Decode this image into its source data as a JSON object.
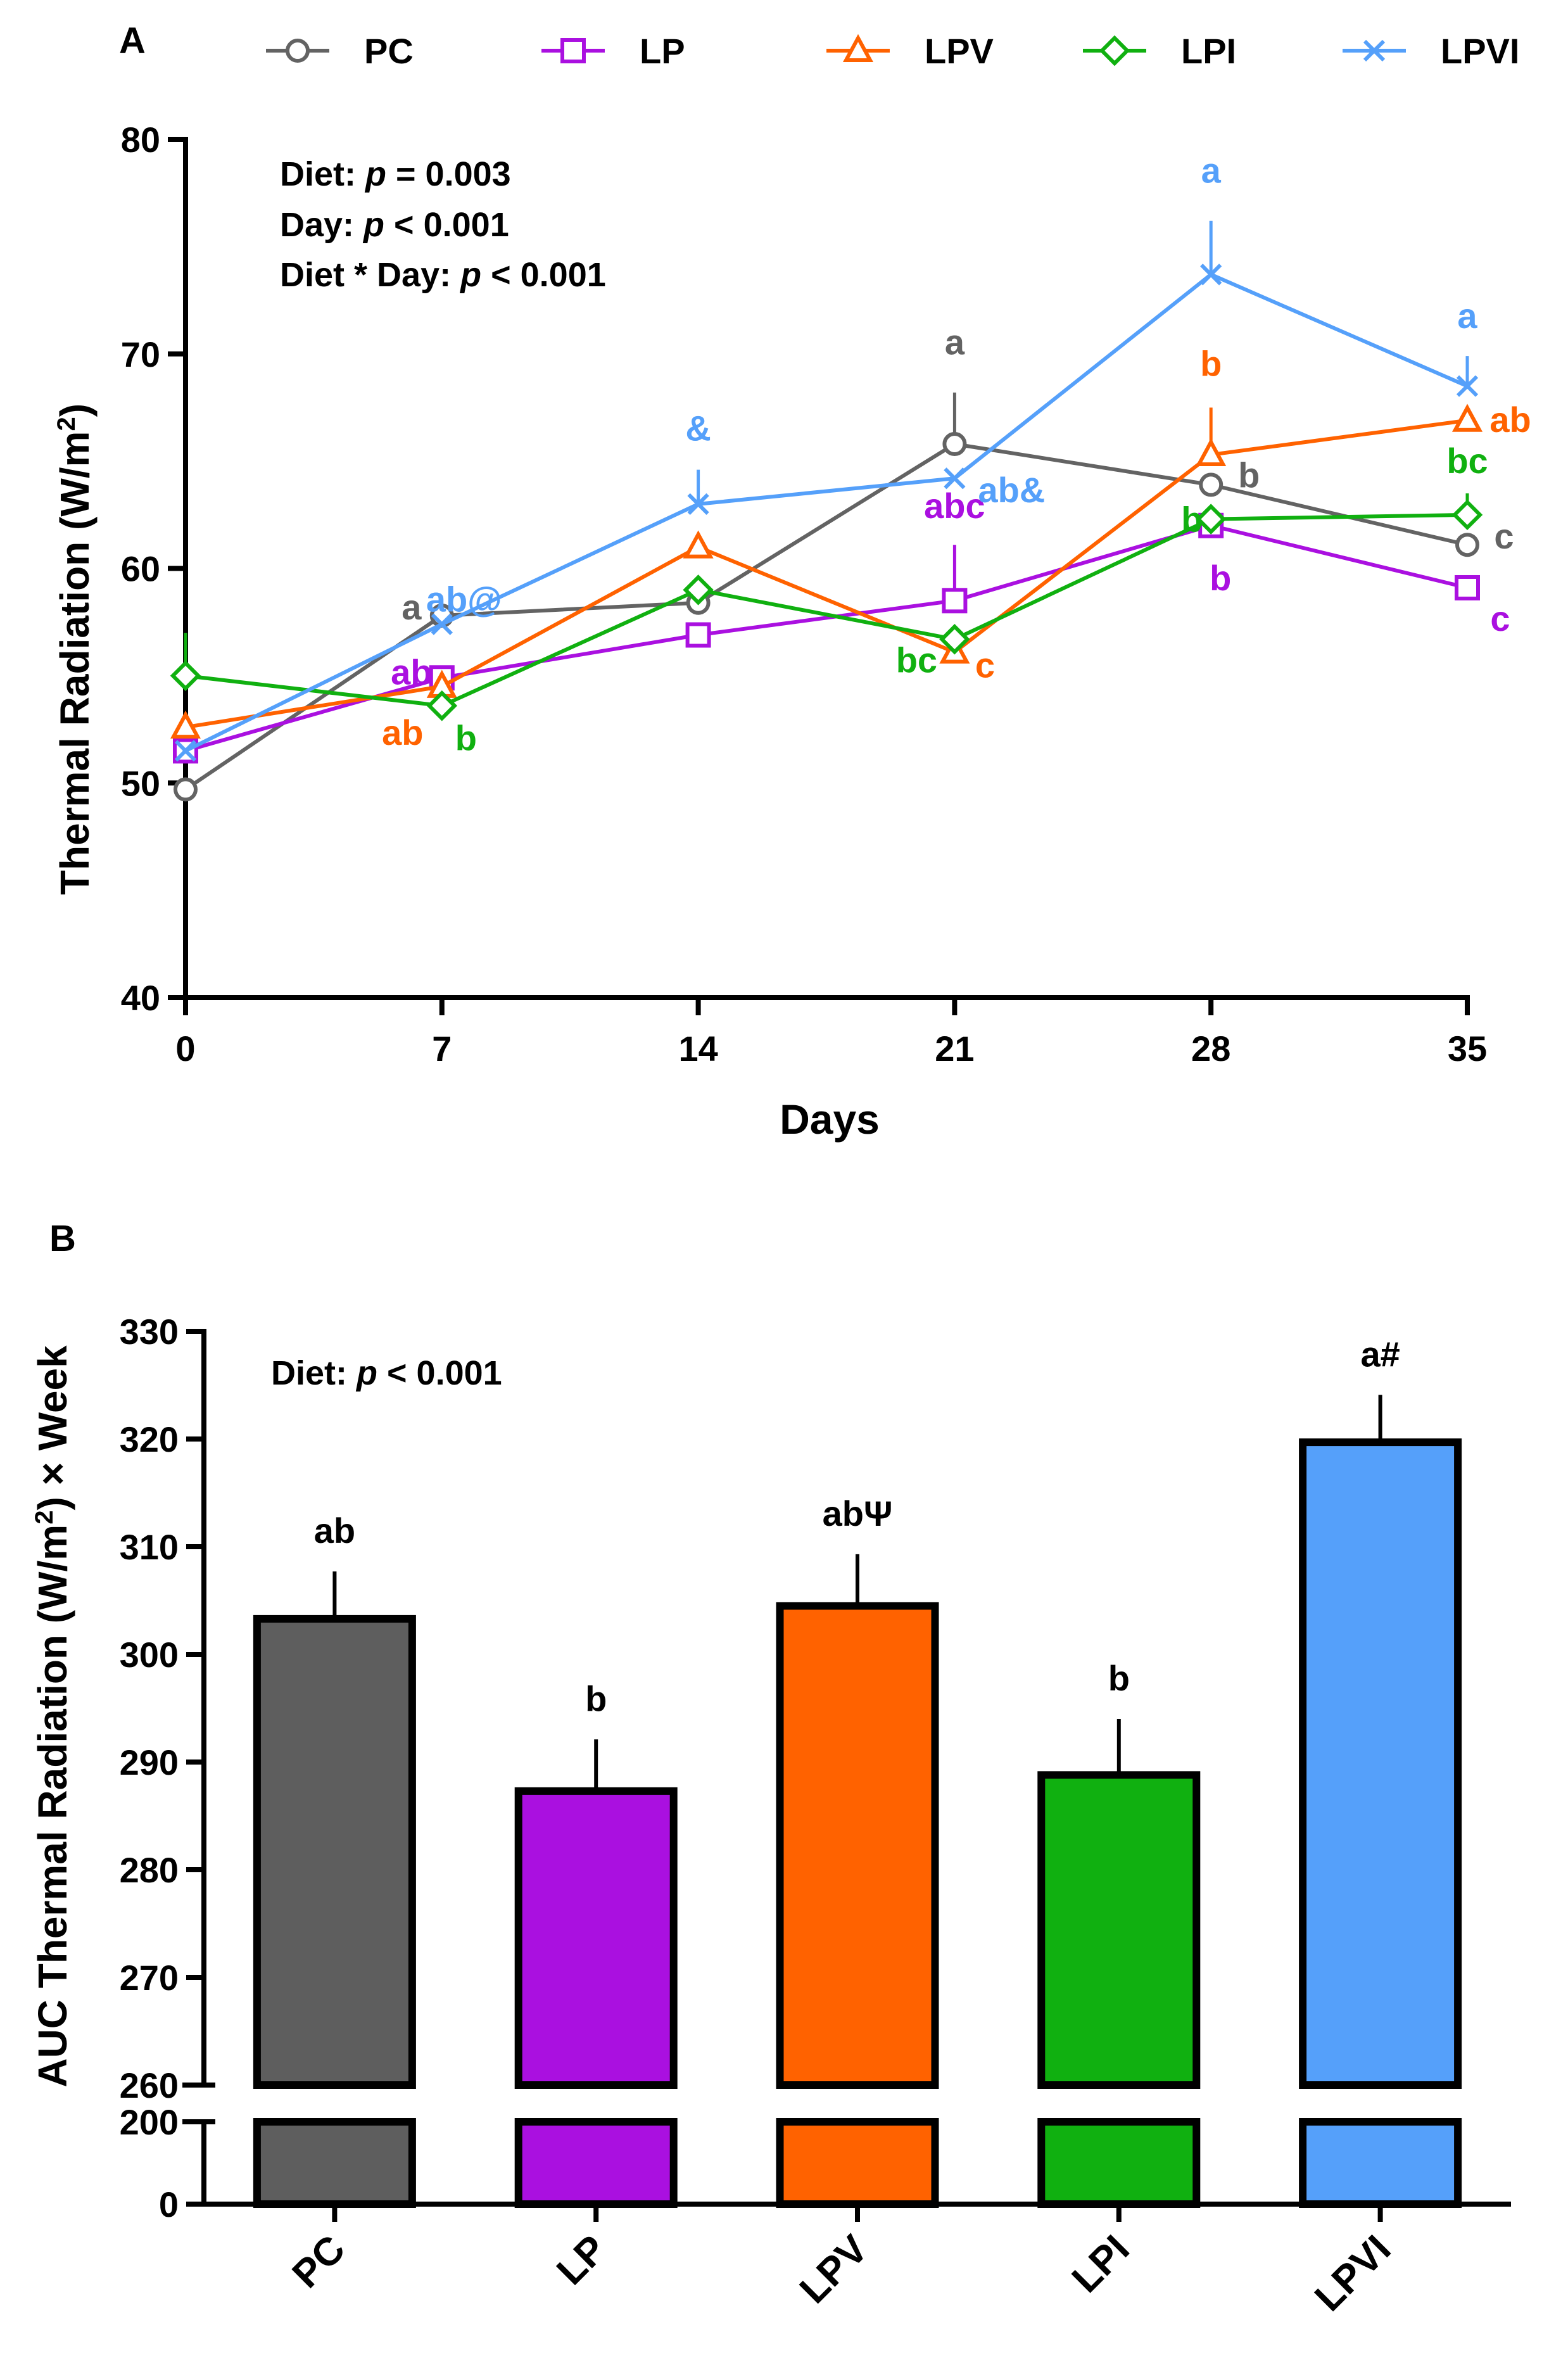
{
  "chart_data": [
    {
      "panel": "A",
      "type": "line",
      "xlabel": "Days",
      "ylabel": "Thermal Radiation (W/m2)",
      "ylabel_main": "Thermal Radiation (W/m",
      "ylabel_sup": "2",
      "ylabel_close": ")",
      "x": [
        0,
        7,
        14,
        21,
        28,
        35
      ],
      "xlim": [
        0,
        35
      ],
      "ylim": [
        40,
        80
      ],
      "y_ticks": [
        40,
        50,
        60,
        70,
        80
      ],
      "grid": false,
      "legend_position": "top",
      "stats": {
        "diet_label": "Diet: ",
        "diet_p": "p",
        "diet_value": " = 0.003",
        "day_label": "Day: ",
        "day_p": "p",
        "day_value": " < 0.001",
        "inter_label": "Diet * Day: ",
        "inter_p": "p",
        "inter_value": " < 0.001"
      },
      "series": [
        {
          "name": "PC",
          "color": "#636363",
          "marker": "circle",
          "values": [
            49.7,
            57.8,
            58.4,
            65.8,
            63.9,
            61.1
          ],
          "errors": [
            0,
            0,
            0,
            2.4,
            0,
            0
          ],
          "labels": [
            "",
            "a",
            "",
            "a",
            "b",
            "c"
          ]
        },
        {
          "name": "LP",
          "color": "#aa10e0",
          "marker": "square",
          "values": [
            51.5,
            54.9,
            56.9,
            58.5,
            62.0,
            59.1
          ],
          "errors": [
            0,
            0,
            0,
            2.6,
            0,
            0
          ],
          "labels": [
            "",
            "ab",
            "",
            "abc",
            "b",
            "c"
          ]
        },
        {
          "name": "LPV",
          "color": "#ff6200",
          "marker": "triangle",
          "values": [
            52.6,
            54.5,
            61.0,
            56.1,
            65.3,
            66.9
          ],
          "errors": [
            0,
            0,
            0,
            0,
            2.2,
            0
          ],
          "labels": [
            "",
            "ab",
            "",
            "c",
            "b",
            "ab"
          ]
        },
        {
          "name": "LPI",
          "color": "#10b010",
          "marker": "diamond",
          "values": [
            55.0,
            53.6,
            59.0,
            56.7,
            62.3,
            62.5
          ],
          "errors": [
            2.0,
            0,
            0,
            0,
            0,
            1.0
          ],
          "labels": [
            "",
            "b",
            "",
            "bc",
            "b",
            "bc"
          ]
        },
        {
          "name": "LPVI",
          "color": "#55a0fa",
          "marker": "cross",
          "values": [
            51.5,
            57.4,
            63.0,
            64.2,
            73.7,
            68.5
          ],
          "errors": [
            0,
            0,
            1.6,
            0,
            2.5,
            1.4
          ],
          "labels": [
            "",
            "ab@",
            "&",
            "ab&",
            "a",
            "a"
          ]
        }
      ]
    },
    {
      "panel": "B",
      "type": "bar",
      "categories": [
        "PC",
        "LP",
        "LPV",
        "LPI",
        "LPVI"
      ],
      "values": [
        303.3,
        287.3,
        304.5,
        288.8,
        319.7
      ],
      "errors": [
        4.4,
        4.8,
        4.8,
        5.2,
        4.4
      ],
      "colors": [
        "#5e5e5e",
        "#aa10e0",
        "#ff6200",
        "#10b010",
        "#55a0fa"
      ],
      "labels": [
        "ab",
        "b",
        "abΨ",
        "b",
        "a#"
      ],
      "ylabel": "AUC Thermal Radiation (W/m2) × Week",
      "ylabel_main": "AUC Thermal Radiation (W/m",
      "ylabel_sup": "2",
      "ylabel_close": ") × Week",
      "ylim_upper": [
        260,
        330
      ],
      "y_ticks_upper": [
        260,
        270,
        280,
        290,
        300,
        310,
        320,
        330
      ],
      "ylim_lower": [
        0,
        200
      ],
      "y_ticks_lower": [
        0,
        200
      ],
      "axis_break": [
        200,
        260
      ],
      "grid": false,
      "stats": {
        "diet_label": "Diet: ",
        "diet_p": "p",
        "diet_value": " < 0.001"
      }
    }
  ]
}
